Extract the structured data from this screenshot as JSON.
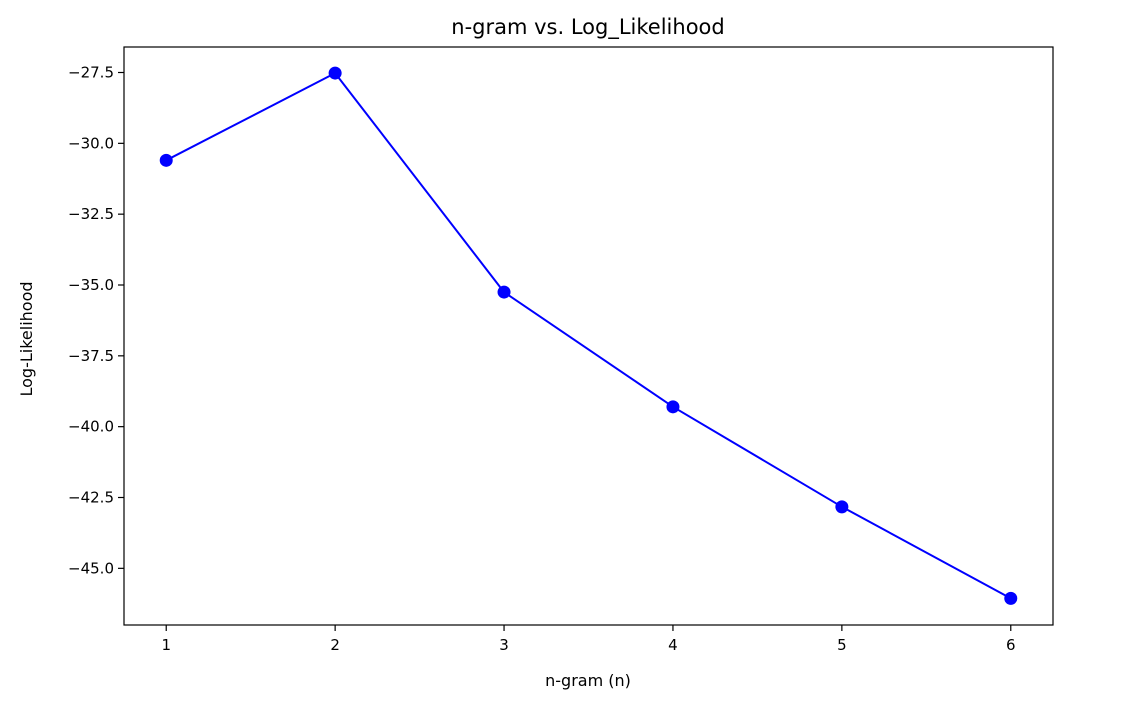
{
  "chart_data": {
    "type": "line",
    "title": "n-gram vs. Log_Likelihood",
    "xlabel": "n-gram (n)",
    "ylabel": "Log-Likelihood",
    "x": [
      1,
      2,
      3,
      4,
      5,
      6
    ],
    "series": [
      {
        "values": [
          -30.6,
          -27.52,
          -35.25,
          -39.3,
          -42.83,
          -46.06
        ],
        "color": "#0000ff",
        "marker": "circle"
      }
    ],
    "xlim": [
      0.75,
      6.25
    ],
    "ylim": [
      -47.0,
      -26.6
    ],
    "xticks": [
      1,
      2,
      3,
      4,
      5,
      6
    ],
    "xtick_labels": [
      "1",
      "2",
      "3",
      "4",
      "5",
      "6"
    ],
    "yticks": [
      -27.5,
      -30.0,
      -32.5,
      -35.0,
      -37.5,
      -40.0,
      -42.5,
      -45.0
    ],
    "ytick_labels": [
      "−27.5",
      "−30.0",
      "−32.5",
      "−35.0",
      "−37.5",
      "−40.0",
      "−42.5",
      "−45.0"
    ],
    "grid": false,
    "legend": "none"
  }
}
